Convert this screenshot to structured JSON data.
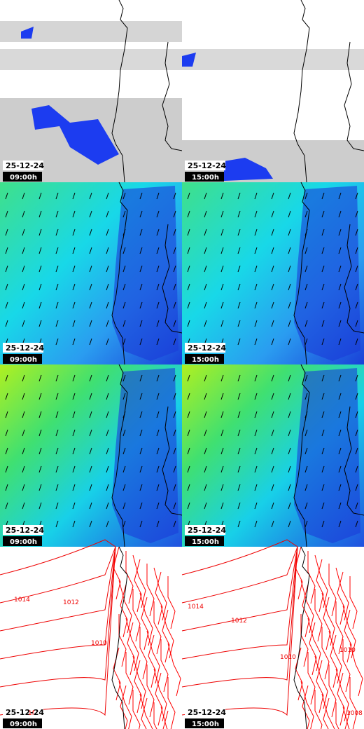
{
  "panels": [
    {
      "date": "25-12-24",
      "time": "09:00h"
    },
    {
      "date": "25-12-24",
      "time": "15:00h"
    },
    {
      "date": "25-12-24",
      "time": "09:00h"
    },
    {
      "date": "25-12-24",
      "time": "15:00h"
    },
    {
      "date": "25-12-24",
      "time": "09:00h"
    },
    {
      "date": "25-12-24",
      "time": "15:00h"
    },
    {
      "date": "25-12-24",
      "time": "09:00h"
    },
    {
      "date": "25-12-24",
      "time": "15:00h"
    }
  ],
  "isobar_labels": {
    "left": [
      "1014",
      "1012",
      "1010",
      "1f"
    ],
    "right": [
      "1014",
      "1012",
      "1010",
      "1010",
      "1008"
    ]
  }
}
